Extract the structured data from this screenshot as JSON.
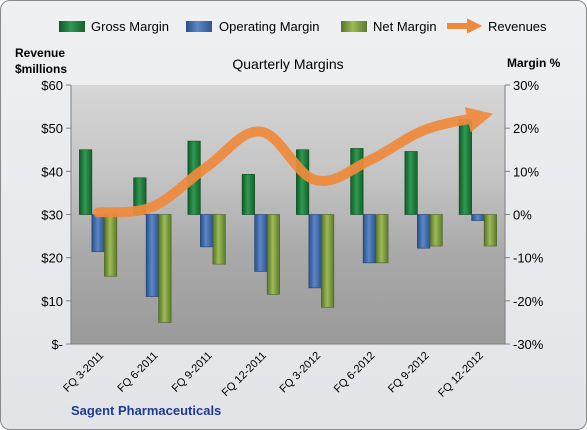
{
  "chart_data": {
    "type": "bar",
    "title": "Quarterly Margins",
    "source_label": "Sagent Pharmaceuticals",
    "left_axis": {
      "label_lines": [
        "Revenue",
        "$millions"
      ],
      "range": [
        0,
        60
      ],
      "ticks": [
        0,
        10,
        20,
        30,
        40,
        50,
        60
      ],
      "tick_labels": [
        "$-",
        "$10",
        "$20",
        "$30",
        "$40",
        "$50",
        "$60"
      ]
    },
    "right_axis": {
      "label": "Margin %",
      "range": [
        -30,
        30
      ],
      "ticks": [
        -30,
        -20,
        -10,
        0,
        10,
        20,
        30
      ],
      "tick_labels": [
        "-30%",
        "-20%",
        "-10%",
        "0%",
        "10%",
        "20%",
        "30%"
      ]
    },
    "categories": [
      "FQ 3-2011",
      "FQ 6-2011",
      "FQ 9-2011",
      "FQ 12-2011",
      "FQ 3-2012",
      "FQ 6-2012",
      "FQ 9-2012",
      "FQ 12-2012"
    ],
    "series": [
      {
        "name": "Gross Margin",
        "type": "bar",
        "axis": "right",
        "color": "#1e7a3c",
        "values": [
          15,
          8.5,
          17,
          9.3,
          15,
          15.3,
          14.6,
          22
        ]
      },
      {
        "name": "Operating Margin",
        "type": "bar",
        "axis": "right",
        "color": "#3f6db3",
        "values": [
          -8.6,
          -19,
          -7.5,
          -13.2,
          -17,
          -11.2,
          -7.8,
          -1.4
        ]
      },
      {
        "name": "Net Margin",
        "type": "bar",
        "axis": "right",
        "color": "#7d9c3c",
        "values": [
          -14.3,
          -25,
          -11.5,
          -18.5,
          -21.5,
          -11.2,
          -7.3,
          -7.3
        ]
      },
      {
        "name": "Revenues",
        "type": "line",
        "axis": "left",
        "color": "#ef8a3c",
        "values": [
          30.5,
          31.8,
          41,
          49.2,
          38,
          42.5,
          49.5,
          52.5
        ]
      }
    ],
    "legend_position": "top",
    "grid": false
  }
}
